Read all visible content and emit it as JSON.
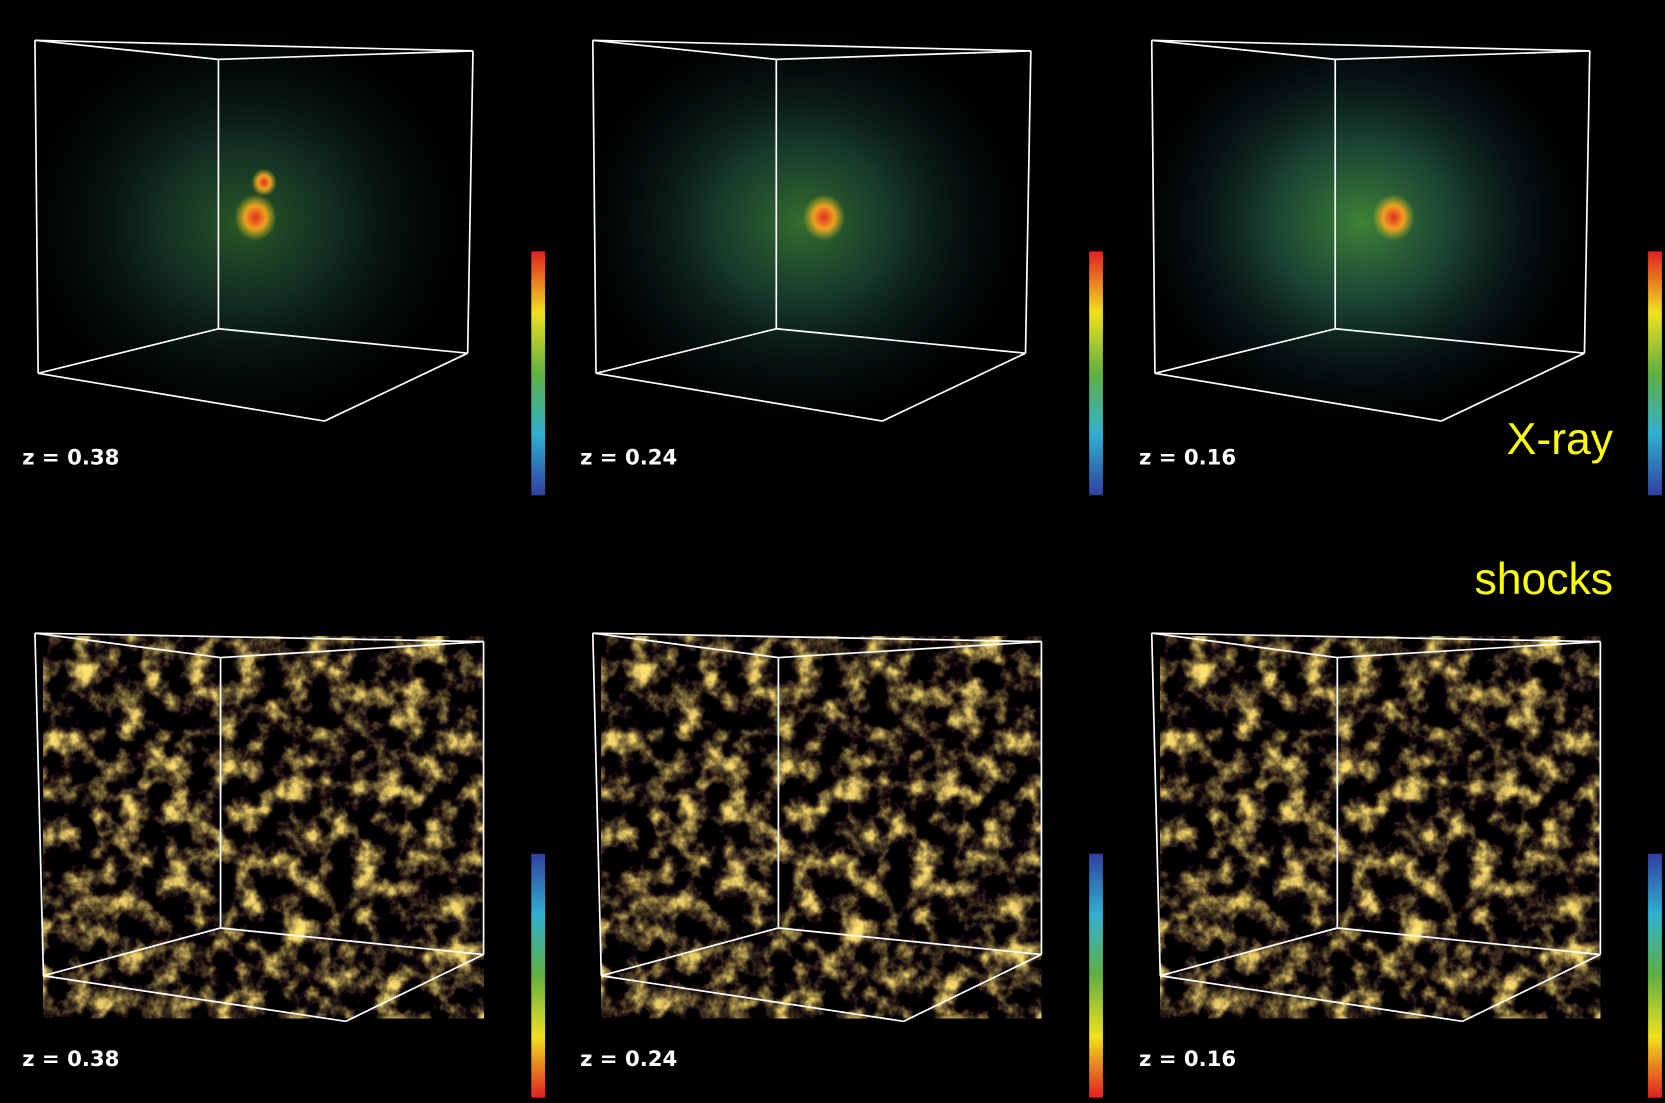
{
  "rows": [
    {
      "label": "X-ray",
      "panels": [
        {
          "redshift": "z = 0.38"
        },
        {
          "redshift": "z = 0.24"
        },
        {
          "redshift": "z = 0.16"
        }
      ]
    },
    {
      "label": "shocks",
      "panels": [
        {
          "redshift": "z = 0.38"
        },
        {
          "redshift": "z = 0.24"
        },
        {
          "redshift": "z = 0.16"
        }
      ]
    }
  ]
}
